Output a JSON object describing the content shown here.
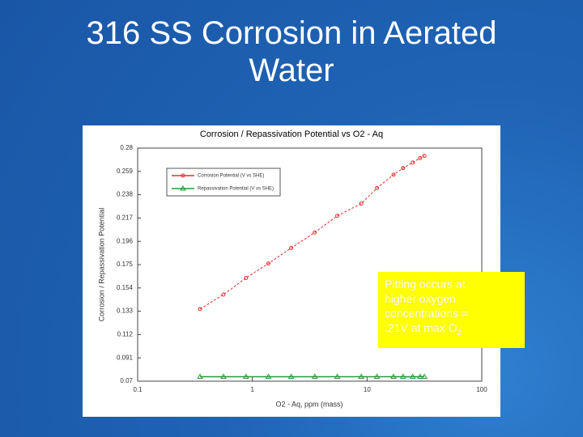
{
  "slide": {
    "title_lines": [
      "316 SS Corrosion in Aerated",
      "Water"
    ]
  },
  "chart_data": {
    "type": "line",
    "title": "Corrosion / Repassivation Potential  vs  O2 - Aq",
    "x_label": "O2 - Aq, ppm (mass)",
    "y_label": "Corrosion / Repassivation Potential",
    "xscale": "log",
    "xlim": [
      0.1,
      100
    ],
    "xticks": [
      0.1,
      1,
      10,
      100
    ],
    "ylim": [
      0.07,
      0.28
    ],
    "yticks": [
      0.28,
      0.259,
      0.238,
      0.217,
      0.196,
      0.175,
      0.154,
      0.133,
      0.112,
      0.091,
      0.07
    ],
    "x": [
      0.35,
      0.56,
      0.88,
      1.38,
      2.18,
      3.5,
      5.5,
      8.9,
      12.2,
      17,
      20.6,
      25,
      29,
      31.6
    ],
    "series": [
      {
        "name": "Corrosion Potential (V vs SHE)",
        "color": "#e03030",
        "marker": "circle",
        "values": [
          0.135,
          0.148,
          0.163,
          0.176,
          0.19,
          0.204,
          0.219,
          0.23,
          0.244,
          0.256,
          0.262,
          0.267,
          0.271,
          0.273
        ]
      },
      {
        "name": "Repassivation Potential (V vs SHE)",
        "color": "#2a9a3a",
        "marker": "triangle",
        "values": [
          0.074,
          0.074,
          0.074,
          0.074,
          0.074,
          0.074,
          0.074,
          0.074,
          0.074,
          0.074,
          0.074,
          0.074,
          0.074,
          0.074
        ]
      }
    ],
    "legend": "upper-left"
  },
  "callout": {
    "lines": [
      "Pitting occurs at",
      "higher oxygen",
      "concentrations =",
      ".21V at max O"
    ],
    "subscript": "2"
  }
}
